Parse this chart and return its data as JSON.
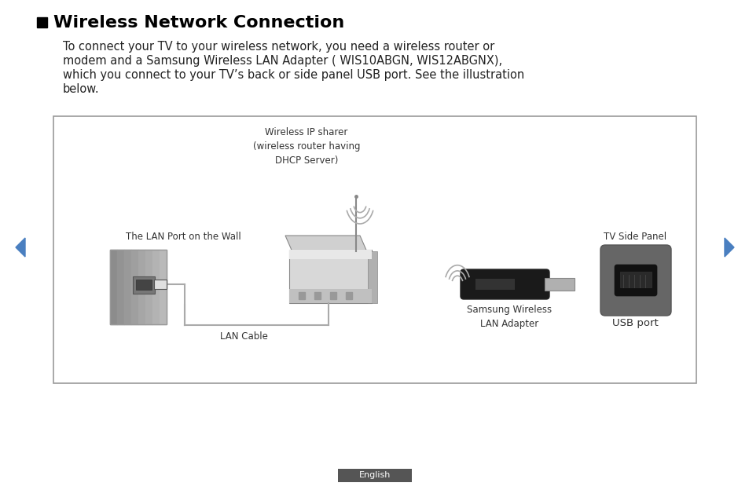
{
  "title": "Wireless Network Connection",
  "body_text": [
    "To connect your TV to your wireless network, you need a wireless router or",
    "modem and a Samsung Wireless LAN Adapter ( WIS10ABGN, WIS12ABGNX),",
    "which you connect to your TV’s back or side panel USB port. See the illustration",
    "below."
  ],
  "box_labels": {
    "wireless_ip": "Wireless IP sharer\n(wireless router having\nDHCP Server)",
    "lan_port": "The LAN Port on the Wall",
    "lan_cable": "LAN Cable",
    "samsung_lan": "Samsung Wireless\nLAN Adapter",
    "usb_port": "USB port",
    "tv_side": "TV Side Panel"
  },
  "footer_text": "English",
  "bg_color": "#ffffff",
  "box_border_color": "#999999",
  "title_color": "#000000",
  "text_color": "#222222",
  "nav_arrow_color": "#4a7fc0",
  "footer_bg": "#555555",
  "footer_text_color": "#ffffff",
  "title_fontsize": 16,
  "body_fontsize": 10.5,
  "label_fontsize": 8.5
}
